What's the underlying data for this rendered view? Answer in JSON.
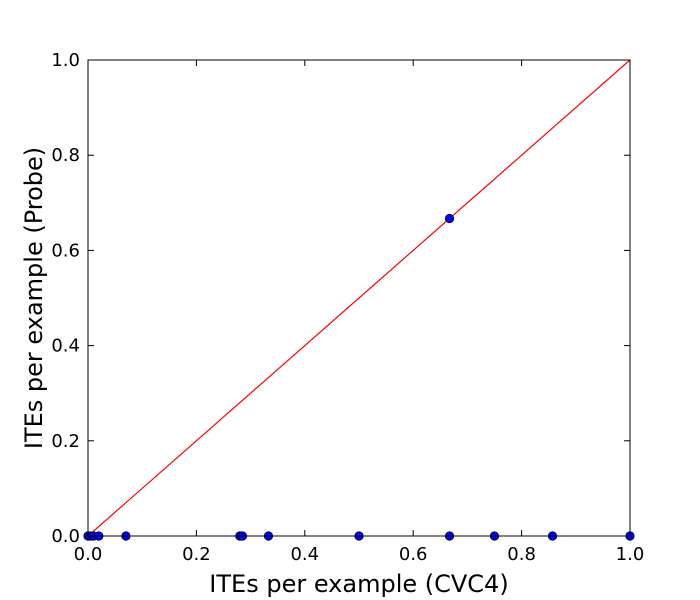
{
  "chart_data": {
    "type": "scatter",
    "title": "",
    "xlabel": "ITEs per example (CVC4)",
    "ylabel": "ITEs per example (Probe)",
    "xlim": [
      0.0,
      1.0
    ],
    "ylim": [
      0.0,
      1.0
    ],
    "xticks": [
      "0.0",
      "0.2",
      "0.4",
      "0.6",
      "0.8",
      "1.0"
    ],
    "yticks": [
      "0.0",
      "0.2",
      "0.4",
      "0.6",
      "0.8",
      "1.0"
    ],
    "grid": false,
    "legend": "none",
    "reference_line": {
      "from": [
        0.0,
        0.0
      ],
      "to": [
        1.0,
        1.0
      ],
      "color": "#ff0000"
    },
    "marker_color": "#0000ff",
    "points": [
      {
        "x": 0.0,
        "y": 0.0
      },
      {
        "x": 0.005,
        "y": 0.0
      },
      {
        "x": 0.01,
        "y": 0.0
      },
      {
        "x": 0.02,
        "y": 0.0
      },
      {
        "x": 0.07,
        "y": 0.0
      },
      {
        "x": 0.28,
        "y": 0.0
      },
      {
        "x": 0.285,
        "y": 0.0
      },
      {
        "x": 0.333,
        "y": 0.0
      },
      {
        "x": 0.5,
        "y": 0.0
      },
      {
        "x": 0.667,
        "y": 0.0
      },
      {
        "x": 0.667,
        "y": 0.667
      },
      {
        "x": 0.75,
        "y": 0.0
      },
      {
        "x": 0.857,
        "y": 0.0
      },
      {
        "x": 1.0,
        "y": 0.0
      }
    ]
  }
}
